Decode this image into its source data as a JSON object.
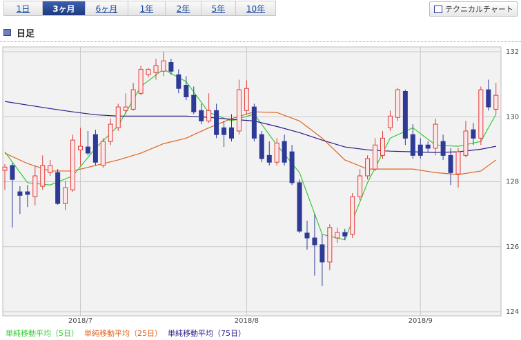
{
  "tabs": [
    "1日",
    "3ヶ月",
    "6ヶ月",
    "1年",
    "2年",
    "5年",
    "10年"
  ],
  "active_tab": 1,
  "button": "テクニカルチャート",
  "section_title": "日足",
  "chart_data": {
    "type": "candlestick",
    "open": [
      128.35,
      128.5,
      127.69,
      127.69,
      127.54,
      127.86,
      128.28,
      128.28,
      127.33,
      127.75,
      128.98,
      129.07,
      129.45,
      128.5,
      129.24,
      129.66,
      130.19,
      130.23,
      130.72,
      131.29,
      131.36,
      131.4,
      131.67,
      131.29,
      130.97,
      130.66,
      130.19,
      129.87,
      130.19,
      129.66,
      129.66,
      129.56,
      130.19,
      130.3,
      129.45,
      128.81,
      128.6,
      129.24,
      128.92,
      127.97,
      126.42,
      126.27,
      126.06,
      125.53,
      126.27,
      126.44,
      126.38,
      127.54,
      128.18,
      128.39,
      128.81,
      129.66,
      129.98,
      130.78,
      129.45,
      129.13,
      129.13,
      129.03,
      129.24,
      128.81,
      128.24,
      128.81,
      129.6,
      129.34,
      130.83,
      130.23
    ],
    "high": [
      128.54,
      128.58,
      127.86,
      127.9,
      128.5,
      128.81,
      128.67,
      128.39,
      128.03,
      129.45,
      129.66,
      129.56,
      129.6,
      129.34,
      129.94,
      130.4,
      130.72,
      131.04,
      131.57,
      131.5,
      131.78,
      131.99,
      131.78,
      131.46,
      131.25,
      130.93,
      130.4,
      130.72,
      130.4,
      129.87,
      130.08,
      131.14,
      131.12,
      130.4,
      129.56,
      129.24,
      129.34,
      129.45,
      129.13,
      128.07,
      126.8,
      127.01,
      126.38,
      126.69,
      126.59,
      126.55,
      127.65,
      128.39,
      128.81,
      129.34,
      129.56,
      130.19,
      130.89,
      130.83,
      129.77,
      129.34,
      129.24,
      129.94,
      129.45,
      129.03,
      129.03,
      129.87,
      129.81,
      130.93,
      131.14,
      131.04
    ],
    "low": [
      127.75,
      126.59,
      127.01,
      127.22,
      127.27,
      127.75,
      128.18,
      127.29,
      127.12,
      127.69,
      128.5,
      128.81,
      128.5,
      128.43,
      129.13,
      129.56,
      130.08,
      130.19,
      130.66,
      131.21,
      131.14,
      131.25,
      131.29,
      130.72,
      130.51,
      130.08,
      129.77,
      129.81,
      129.34,
      129.07,
      129.24,
      129.45,
      130.08,
      129.24,
      128.6,
      128.5,
      128.5,
      128.5,
      127.9,
      126.42,
      125.91,
      125.11,
      124.79,
      125.28,
      126.12,
      126.21,
      126.27,
      127.44,
      128.07,
      128.33,
      128.71,
      129.56,
      129.87,
      129.13,
      128.71,
      128.71,
      128.92,
      128.81,
      128.67,
      127.9,
      127.82,
      128.75,
      129.13,
      129.13,
      130.19,
      130.08
    ],
    "close": [
      128.45,
      128.07,
      127.58,
      127.61,
      128.18,
      128.5,
      128.5,
      127.33,
      127.82,
      129.28,
      129.09,
      128.88,
      128.6,
      129.24,
      129.77,
      130.3,
      130.3,
      130.83,
      131.46,
      131.46,
      131.57,
      131.72,
      131.4,
      130.87,
      130.61,
      130.15,
      129.87,
      130.19,
      129.45,
      129.45,
      129.34,
      130.83,
      130.87,
      129.34,
      128.71,
      128.6,
      129.19,
      128.6,
      127.97,
      126.48,
      126.27,
      126.06,
      125.53,
      126.59,
      126.44,
      126.33,
      127.54,
      128.18,
      128.71,
      129.13,
      129.34,
      130.02,
      130.83,
      129.34,
      128.81,
      128.81,
      129.03,
      129.77,
      128.81,
      128.28,
      128.92,
      129.56,
      129.34,
      130.83,
      130.3,
      130.66
    ],
    "up_color": "#e03a3a",
    "down_color": "#2d3a96",
    "ylim": [
      124,
      132
    ],
    "yticks": [
      124,
      126,
      128,
      130,
      132
    ],
    "xticks": [
      {
        "value": 10,
        "label": "2018/7"
      },
      {
        "value": 32,
        "label": "2018/8"
      },
      {
        "value": 55,
        "label": "2018/9"
      }
    ],
    "grid": true,
    "series": [
      {
        "name": "単純移動平均（5日）",
        "color": "#33cc33",
        "x": [
          0,
          3,
          6,
          9,
          12,
          15,
          18,
          21,
          24,
          27,
          30,
          33,
          36,
          39,
          42,
          45,
          48,
          51,
          54,
          57,
          60,
          63,
          65
        ],
        "values": [
          128.92,
          127.97,
          127.9,
          128.18,
          129.03,
          129.72,
          130.93,
          131.46,
          131.08,
          130.13,
          129.87,
          130.08,
          129.13,
          128.28,
          126.38,
          126.21,
          127.97,
          129.34,
          129.66,
          129.13,
          129.09,
          129.24,
          130.08
        ]
      },
      {
        "name": "単純移動平均（25日）",
        "color": "#e0621e",
        "x": [
          0,
          3,
          6,
          9,
          12,
          15,
          18,
          21,
          24,
          27,
          30,
          33,
          36,
          39,
          42,
          45,
          48,
          51,
          54,
          57,
          60,
          63,
          65
        ],
        "values": [
          128.88,
          128.56,
          128.33,
          128.33,
          128.5,
          128.67,
          128.88,
          129.17,
          129.34,
          129.66,
          129.94,
          130.15,
          130.13,
          129.87,
          129.34,
          128.67,
          128.39,
          128.39,
          128.39,
          128.28,
          128.22,
          128.33,
          128.67
        ]
      },
      {
        "name": "単純移動平均（75日）",
        "color": "#2a1a8a",
        "x": [
          0,
          3,
          6,
          9,
          12,
          15,
          18,
          21,
          24,
          27,
          30,
          33,
          36,
          39,
          42,
          45,
          48,
          51,
          54,
          57,
          60,
          63,
          65
        ],
        "values": [
          130.47,
          130.36,
          130.25,
          130.15,
          130.06,
          130.02,
          130.02,
          130.02,
          130.02,
          129.98,
          129.92,
          129.87,
          129.7,
          129.51,
          129.28,
          129.07,
          128.98,
          128.94,
          128.92,
          128.9,
          128.92,
          129.0,
          129.09
        ]
      }
    ]
  }
}
